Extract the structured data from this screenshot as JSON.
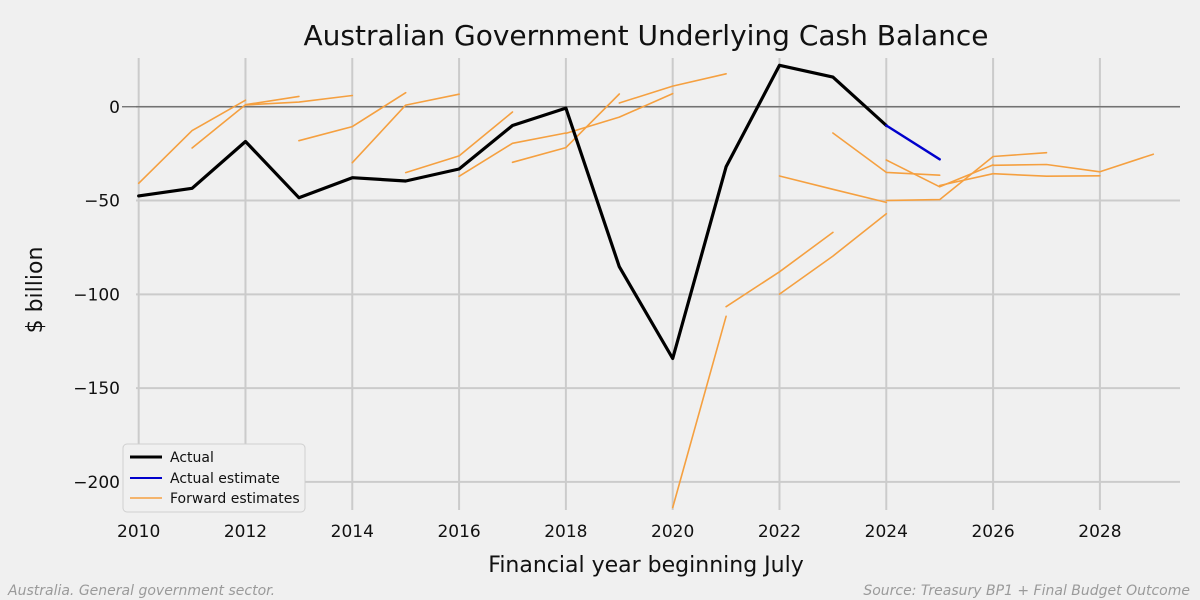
{
  "chart_data": {
    "type": "line",
    "title": "Australian Government Underlying Cash Balance",
    "xlabel": "Financial year beginning July",
    "ylabel": "$ billion",
    "xlim": [
      2009.95,
      2029.5
    ],
    "ylim": [
      -215,
      26
    ],
    "xticks": [
      2010,
      2012,
      2014,
      2016,
      2018,
      2020,
      2022,
      2024,
      2026,
      2028
    ],
    "xtick_labels": [
      "2010",
      "2012",
      "2014",
      "2016",
      "2018",
      "2020",
      "2022",
      "2024",
      "2026",
      "2028"
    ],
    "yticks": [
      0,
      -50,
      -100,
      -150,
      -200
    ],
    "ytick_labels": [
      "0",
      "−50",
      "−100",
      "−150",
      "−200"
    ],
    "grid": true,
    "zero_line": true,
    "legend_position": "lower-left",
    "legend": [
      {
        "label": "Actual",
        "color": "#000000"
      },
      {
        "label": "Actual estimate",
        "color": "#0000cc"
      },
      {
        "label": "Forward estimates",
        "color": "#f5a040"
      }
    ],
    "series": [
      {
        "name": "Actual",
        "color": "#000000",
        "x": [
          2010,
          2011,
          2012,
          2013,
          2014,
          2015,
          2016,
          2017,
          2018,
          2019,
          2020,
          2021,
          2022,
          2023,
          2024
        ],
        "y": [
          -47.5,
          -43.5,
          -18.5,
          -48.5,
          -37.8,
          -39.6,
          -33.2,
          -10.0,
          -0.7,
          -85.3,
          -134.2,
          -32.0,
          22.1,
          15.8,
          -10.0
        ]
      },
      {
        "name": "Actual estimate",
        "color": "#0000cc",
        "x": [
          2024,
          2025
        ],
        "y": [
          -10.0,
          -28.0
        ]
      }
    ],
    "forward_estimates": {
      "name": "Forward estimates",
      "color": "#f5a040",
      "lines": [
        {
          "x": [
            2010,
            2011,
            2012
          ],
          "y": [
            -40.8,
            -12.7,
            3.5
          ]
        },
        {
          "x": [
            2011,
            2012,
            2013
          ],
          "y": [
            -22.0,
            1.1,
            5.5
          ]
        },
        {
          "x": [
            2012,
            2013,
            2014
          ],
          "y": [
            1.0,
            2.5,
            6.0
          ]
        },
        {
          "x": [
            2013,
            2014,
            2015
          ],
          "y": [
            -18.1,
            -10.6,
            7.5
          ]
        },
        {
          "x": [
            2014,
            2015,
            2016
          ],
          "y": [
            -29.8,
            0.9,
            6.7
          ]
        },
        {
          "x": [
            2015,
            2016,
            2017
          ],
          "y": [
            -35.1,
            -26.2,
            -2.8
          ]
        },
        {
          "x": [
            2016,
            2017,
            2018
          ],
          "y": [
            -37.1,
            -19.5,
            -14.0
          ]
        },
        {
          "x": [
            2017,
            2018,
            2019
          ],
          "y": [
            -29.6,
            -21.8,
            6.8
          ]
        },
        {
          "x": [
            2018,
            2019,
            2020
          ],
          "y": [
            -14.2,
            -5.5,
            7.0
          ]
        },
        {
          "x": [
            2019,
            2020,
            2021
          ],
          "y": [
            2.0,
            11.0,
            17.6
          ]
        },
        {
          "x": [
            2020,
            2021
          ],
          "y": [
            -213.7,
            -111.7
          ]
        },
        {
          "x": [
            2021,
            2022,
            2023
          ],
          "y": [
            -106.6,
            -88.0,
            -67.0
          ]
        },
        {
          "x": [
            2022,
            2023,
            2024
          ],
          "y": [
            -99.9,
            -79.6,
            -57.0
          ]
        },
        {
          "x": [
            2023,
            2024,
            2025
          ],
          "y": [
            -14.0,
            -35.0,
            -36.5
          ]
        },
        {
          "x": [
            2022,
            2023,
            2024
          ],
          "y": [
            -36.9,
            -44.0,
            -51.0
          ]
        },
        {
          "x": [
            2024,
            2025,
            2026
          ],
          "y": [
            -28.4,
            -42.7,
            -31.0
          ]
        },
        {
          "x": [
            2024,
            2025,
            2026,
            2027
          ],
          "y": [
            -50.0,
            -49.5,
            -26.5,
            -24.5
          ]
        },
        {
          "x": [
            2025,
            2026,
            2027,
            2028
          ],
          "y": [
            -42.0,
            -35.7,
            -37.0,
            -36.8
          ]
        },
        {
          "x": [
            2026,
            2027,
            2028,
            2029
          ],
          "y": [
            -31.2,
            -30.8,
            -34.7,
            -25.3
          ]
        }
      ]
    }
  },
  "footer": {
    "left_note": "Australia. General government sector.",
    "right_note": "Source: Treasury BP1 + Final Budget Outcome"
  }
}
